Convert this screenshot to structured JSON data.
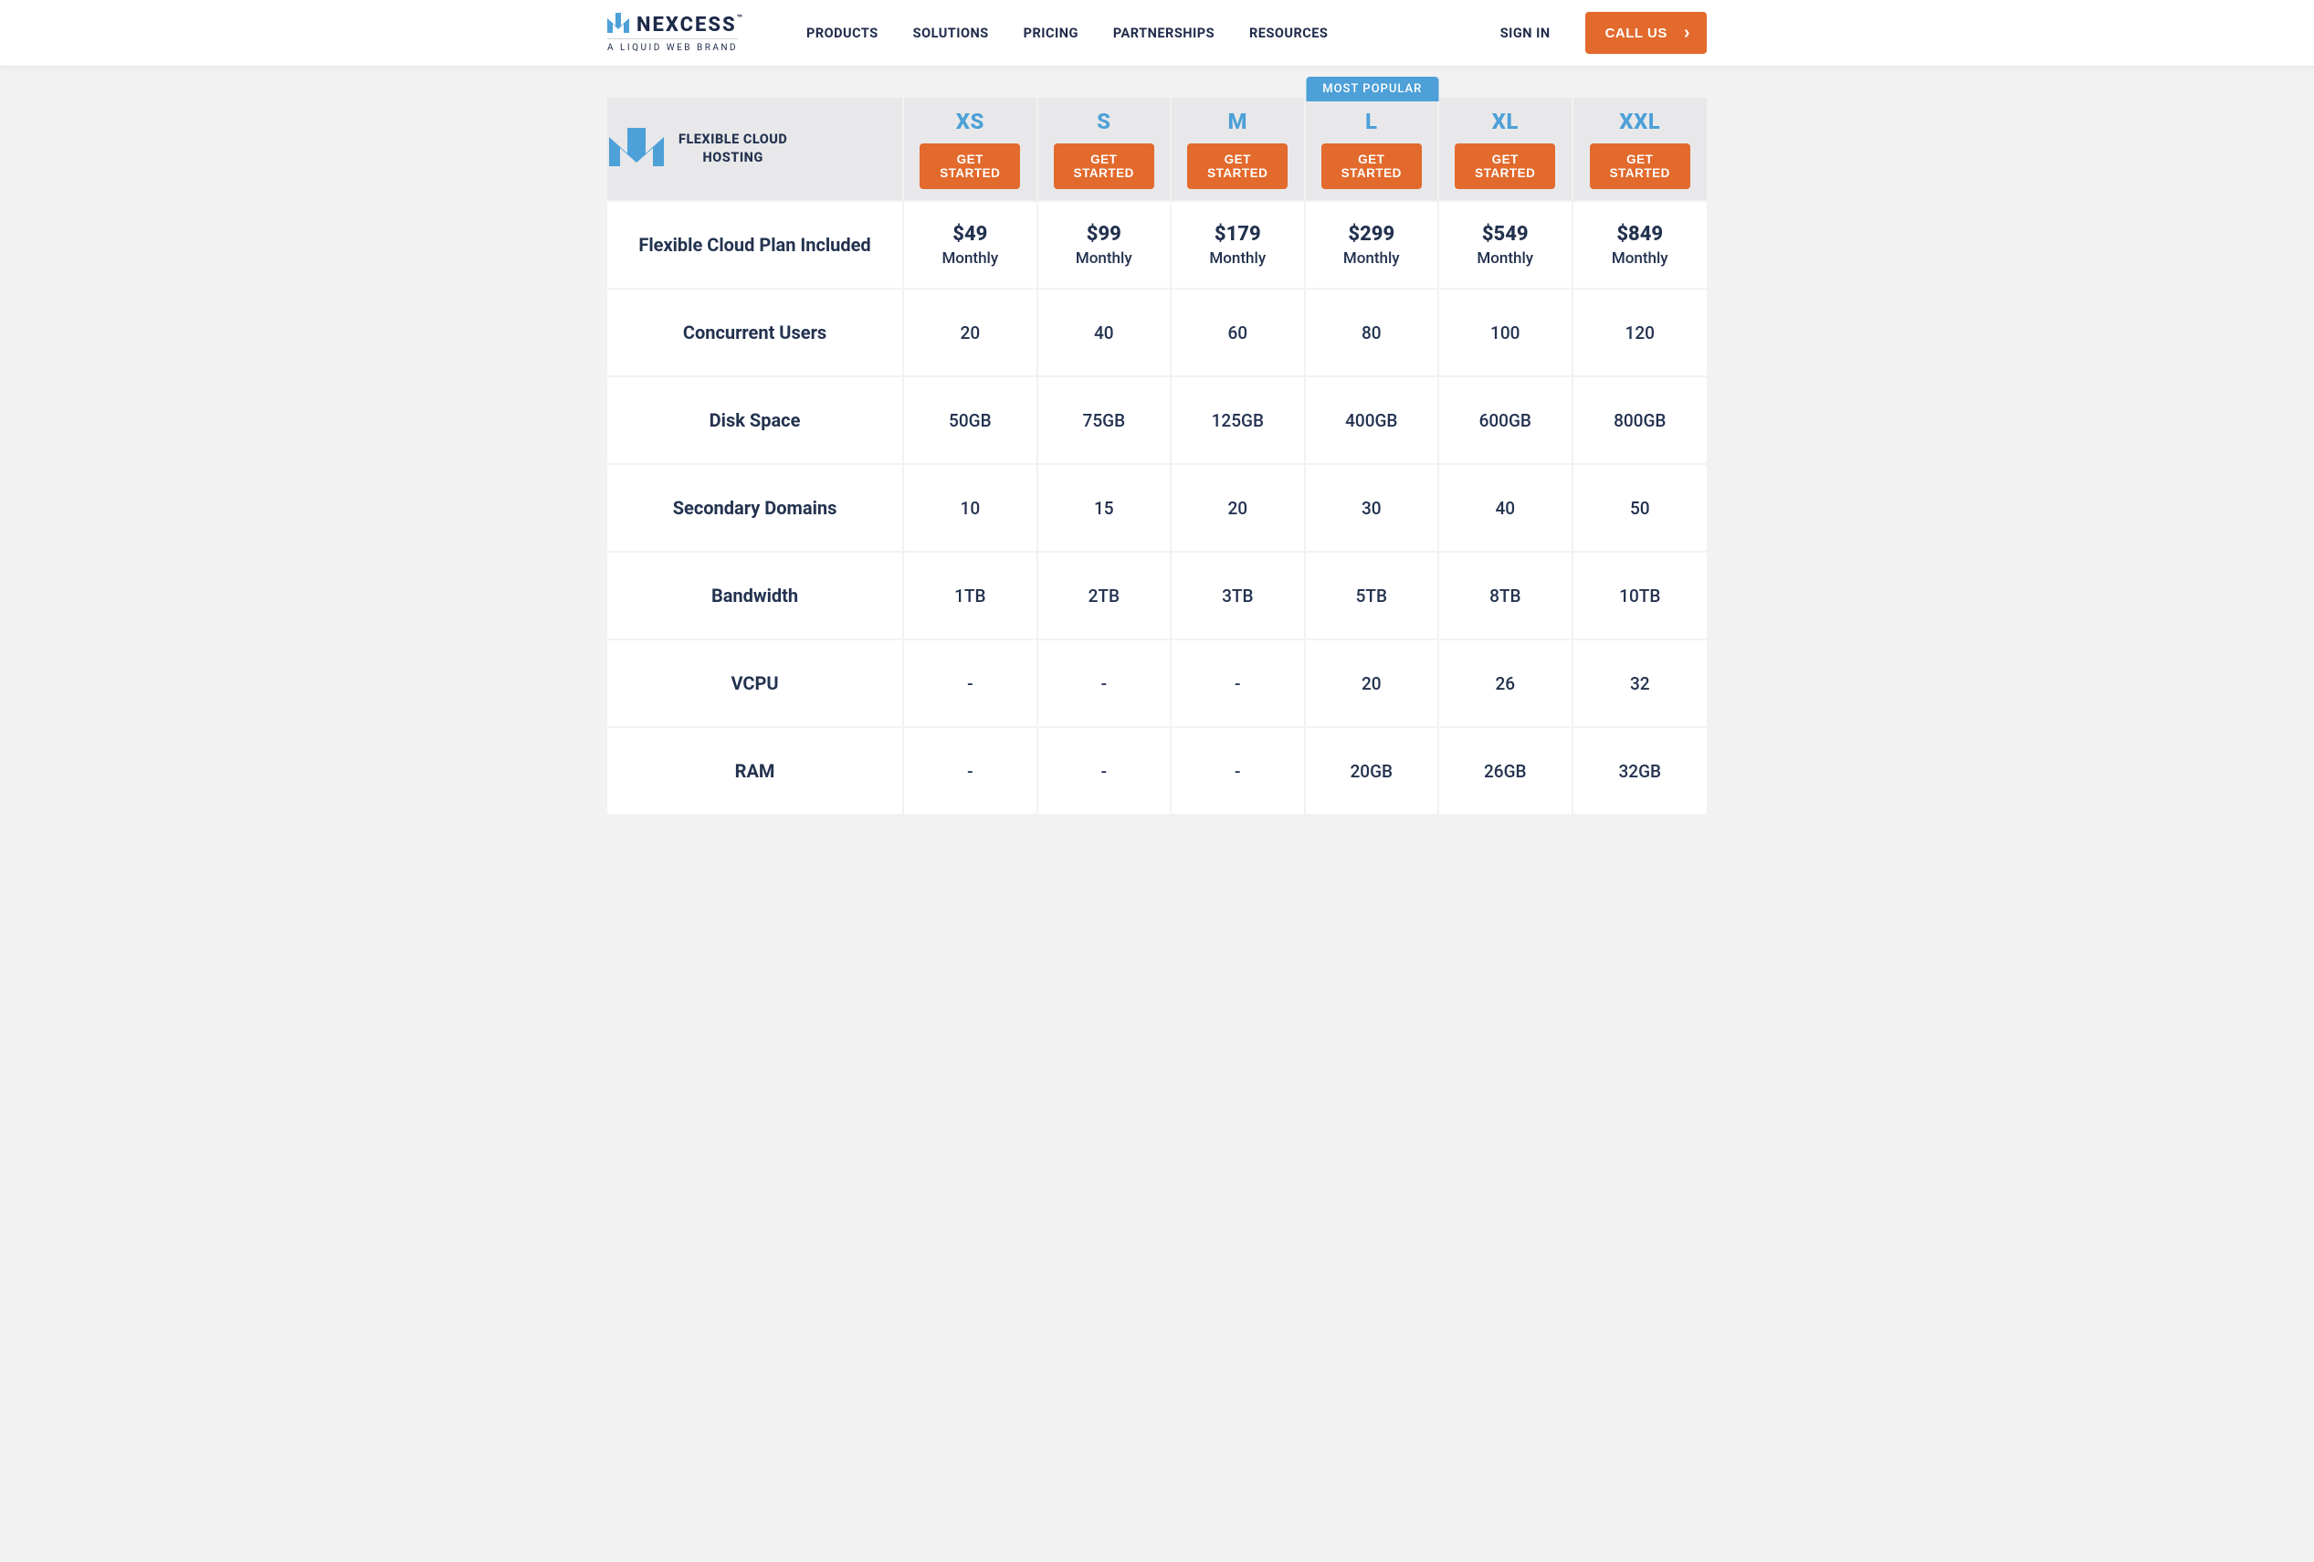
{
  "colors": {
    "accent_blue": "#4da0d8",
    "accent_orange": "#e26a2c",
    "text": "#23324f",
    "page_bg": "#f2f2f2",
    "header_bg": "#e8e8ea",
    "grid_line": "#f2f2f2",
    "white": "#ffffff"
  },
  "header": {
    "brand_name": "NEXCESS",
    "brand_tagline": "A LIQUID WEB BRAND",
    "nav": [
      "PRODUCTS",
      "SOLUTIONS",
      "PRICING",
      "PARTNERSHIPS",
      "RESOURCES"
    ],
    "signin": "SIGN IN",
    "call_us": "CALL US"
  },
  "table": {
    "corner_title": "FLEXIBLE CLOUD HOSTING",
    "get_started_label": "GET STARTED",
    "most_popular_label": "MOST POPULAR",
    "most_popular_index": 3,
    "price_period": "Monthly",
    "plans": [
      {
        "name": "XS",
        "price": "$49"
      },
      {
        "name": "S",
        "price": "$99"
      },
      {
        "name": "M",
        "price": "$179"
      },
      {
        "name": "L",
        "price": "$299"
      },
      {
        "name": "XL",
        "price": "$549"
      },
      {
        "name": "XXL",
        "price": "$849"
      }
    ],
    "rows": [
      {
        "label": "Flexible Cloud Plan Included",
        "type": "price"
      },
      {
        "label": "Concurrent Users",
        "values": [
          "20",
          "40",
          "60",
          "80",
          "100",
          "120"
        ]
      },
      {
        "label": "Disk Space",
        "values": [
          "50GB",
          "75GB",
          "125GB",
          "400GB",
          "600GB",
          "800GB"
        ]
      },
      {
        "label": "Secondary Domains",
        "values": [
          "10",
          "15",
          "20",
          "30",
          "40",
          "50"
        ]
      },
      {
        "label": "Bandwidth",
        "values": [
          "1TB",
          "2TB",
          "3TB",
          "5TB",
          "8TB",
          "10TB"
        ]
      },
      {
        "label": "VCPU",
        "values": [
          "-",
          "-",
          "-",
          "20",
          "26",
          "32"
        ]
      },
      {
        "label": "RAM",
        "values": [
          "-",
          "-",
          "-",
          "20GB",
          "26GB",
          "32GB"
        ]
      }
    ]
  }
}
